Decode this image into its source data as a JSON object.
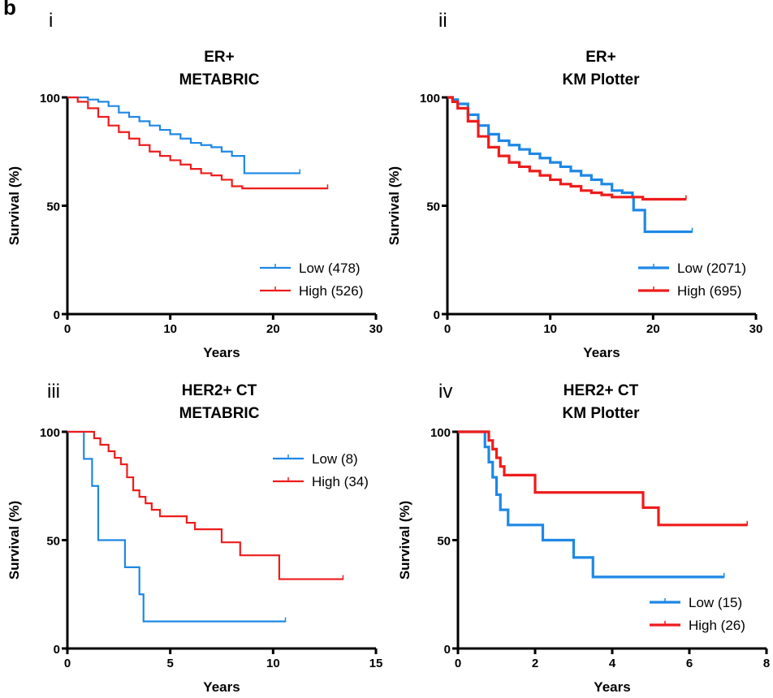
{
  "figure_label": "b",
  "colors": {
    "low": "#1e88e5",
    "high": "#ee1c1c",
    "axis": "#000000"
  },
  "chart_data": [
    {
      "type": "line",
      "panel": "i",
      "title": [
        "ER+",
        "METABRIC"
      ],
      "xlabel": "Years",
      "ylabel": "Survival (%)",
      "xlim": [
        0,
        30
      ],
      "ylim": [
        0,
        100
      ],
      "xticks": [
        0,
        10,
        20,
        30
      ],
      "yticks": [
        0,
        50,
        100
      ],
      "legend_position": "bottom-right",
      "series": [
        {
          "name": "Low (478)",
          "color": "#1e88e5",
          "x": [
            0,
            1,
            2,
            3,
            4,
            5,
            6,
            7,
            8,
            9,
            10,
            11,
            12,
            13,
            14,
            15,
            16,
            16.8,
            17.2,
            18,
            19,
            20,
            21,
            22,
            22.6
          ],
          "y": [
            100,
            100,
            99,
            98,
            96,
            93,
            91,
            89,
            87,
            85,
            83,
            81,
            79,
            78,
            77,
            75,
            73,
            73,
            65,
            65,
            65,
            65,
            65,
            65,
            65
          ]
        },
        {
          "name": "High (526)",
          "color": "#ee1c1c",
          "x": [
            0,
            1,
            2,
            3,
            4,
            5,
            6,
            7,
            8,
            9,
            10,
            11,
            12,
            13,
            14,
            15,
            16,
            17,
            18,
            19,
            20,
            21,
            22,
            23,
            24,
            25.3
          ],
          "y": [
            100,
            98,
            95,
            91,
            87,
            84,
            81,
            78,
            75,
            73,
            71,
            69,
            67,
            65,
            64,
            62,
            59,
            58,
            58,
            58,
            58,
            58,
            58,
            58,
            58,
            58
          ]
        }
      ]
    },
    {
      "type": "line",
      "panel": "ii",
      "title": [
        "ER+",
        "KM Plotter"
      ],
      "xlabel": "Years",
      "ylabel": "Survival (%)",
      "xlim": [
        0,
        30
      ],
      "ylim": [
        0,
        100
      ],
      "xticks": [
        0,
        10,
        20,
        30
      ],
      "yticks": [
        0,
        50,
        100
      ],
      "legend_position": "bottom-right",
      "series": [
        {
          "name": "Low (2071)",
          "color": "#1e88e5",
          "x": [
            0,
            0.5,
            1,
            2,
            3,
            4,
            5,
            6,
            7,
            8,
            9,
            10,
            11,
            12,
            13,
            14,
            15,
            16,
            17,
            18,
            18.1,
            19,
            19.2,
            20,
            21,
            22,
            23,
            23.8
          ],
          "y": [
            100,
            99,
            97,
            92,
            87,
            83,
            80,
            78,
            76,
            74,
            72,
            70,
            68,
            66,
            64,
            62,
            60,
            57,
            56,
            54,
            48,
            48,
            38,
            38,
            38,
            38,
            38,
            38
          ]
        },
        {
          "name": "High (695)",
          "color": "#ee1c1c",
          "x": [
            0,
            0.5,
            1,
            2,
            3,
            4,
            5,
            6,
            7,
            8,
            9,
            10,
            11,
            12,
            13,
            14,
            15,
            16,
            17,
            18,
            19,
            20,
            21,
            22,
            23.2
          ],
          "y": [
            100,
            98,
            95,
            89,
            82,
            77,
            73,
            70,
            68,
            66,
            64,
            62,
            60,
            59,
            57,
            56,
            55,
            54,
            54,
            54,
            53,
            53,
            53,
            53,
            53
          ]
        }
      ]
    },
    {
      "type": "line",
      "panel": "iii",
      "title": [
        "HER2+ CT",
        "METABRIC"
      ],
      "xlabel": "Years",
      "ylabel": "Survival (%)",
      "xlim": [
        0,
        15
      ],
      "ylim": [
        0,
        100
      ],
      "xticks": [
        0,
        5,
        10,
        15
      ],
      "yticks": [
        0,
        50,
        100
      ],
      "legend_position": "top-right",
      "series": [
        {
          "name": "Low (8)",
          "color": "#1e88e5",
          "x": [
            0,
            0.8,
            1.2,
            1.5,
            2.8,
            3.5,
            3.7,
            10.6
          ],
          "y": [
            100,
            87.5,
            75,
            50,
            37.5,
            25,
            12.5,
            12.5
          ]
        },
        {
          "name": "High (34)",
          "color": "#ee1c1c",
          "x": [
            0,
            1.3,
            1.6,
            2.0,
            2.3,
            2.6,
            2.9,
            3.2,
            3.5,
            3.8,
            4.1,
            4.5,
            5.8,
            6.2,
            7.5,
            8.4,
            10.3,
            13.4
          ],
          "y": [
            100,
            97,
            94,
            91,
            88,
            85,
            79,
            73,
            70,
            67,
            64,
            61,
            58,
            55,
            49,
            43,
            32,
            32
          ]
        }
      ]
    },
    {
      "type": "line",
      "panel": "iv",
      "title": [
        "HER2+ CT",
        "KM Plotter"
      ],
      "xlabel": "Years",
      "ylabel": "Survival (%)",
      "xlim": [
        0,
        8
      ],
      "ylim": [
        0,
        100
      ],
      "xticks": [
        0,
        2,
        4,
        6,
        8
      ],
      "yticks": [
        0,
        50,
        100
      ],
      "legend_position": "bottom-right",
      "series": [
        {
          "name": "Low (15)",
          "color": "#1e88e5",
          "x": [
            0,
            0.7,
            0.8,
            0.9,
            1.0,
            1.1,
            1.3,
            2.2,
            3.0,
            3.5,
            6.9
          ],
          "y": [
            100,
            93,
            86,
            79,
            71,
            64,
            57,
            50,
            42,
            33,
            33
          ]
        },
        {
          "name": "High (26)",
          "color": "#ee1c1c",
          "x": [
            0,
            0.8,
            0.9,
            1.0,
            1.1,
            1.2,
            1.4,
            2.0,
            4.8,
            5.2,
            7.5
          ],
          "y": [
            100,
            96,
            92,
            88,
            84,
            80,
            80,
            72,
            65,
            57,
            57
          ]
        }
      ]
    }
  ]
}
